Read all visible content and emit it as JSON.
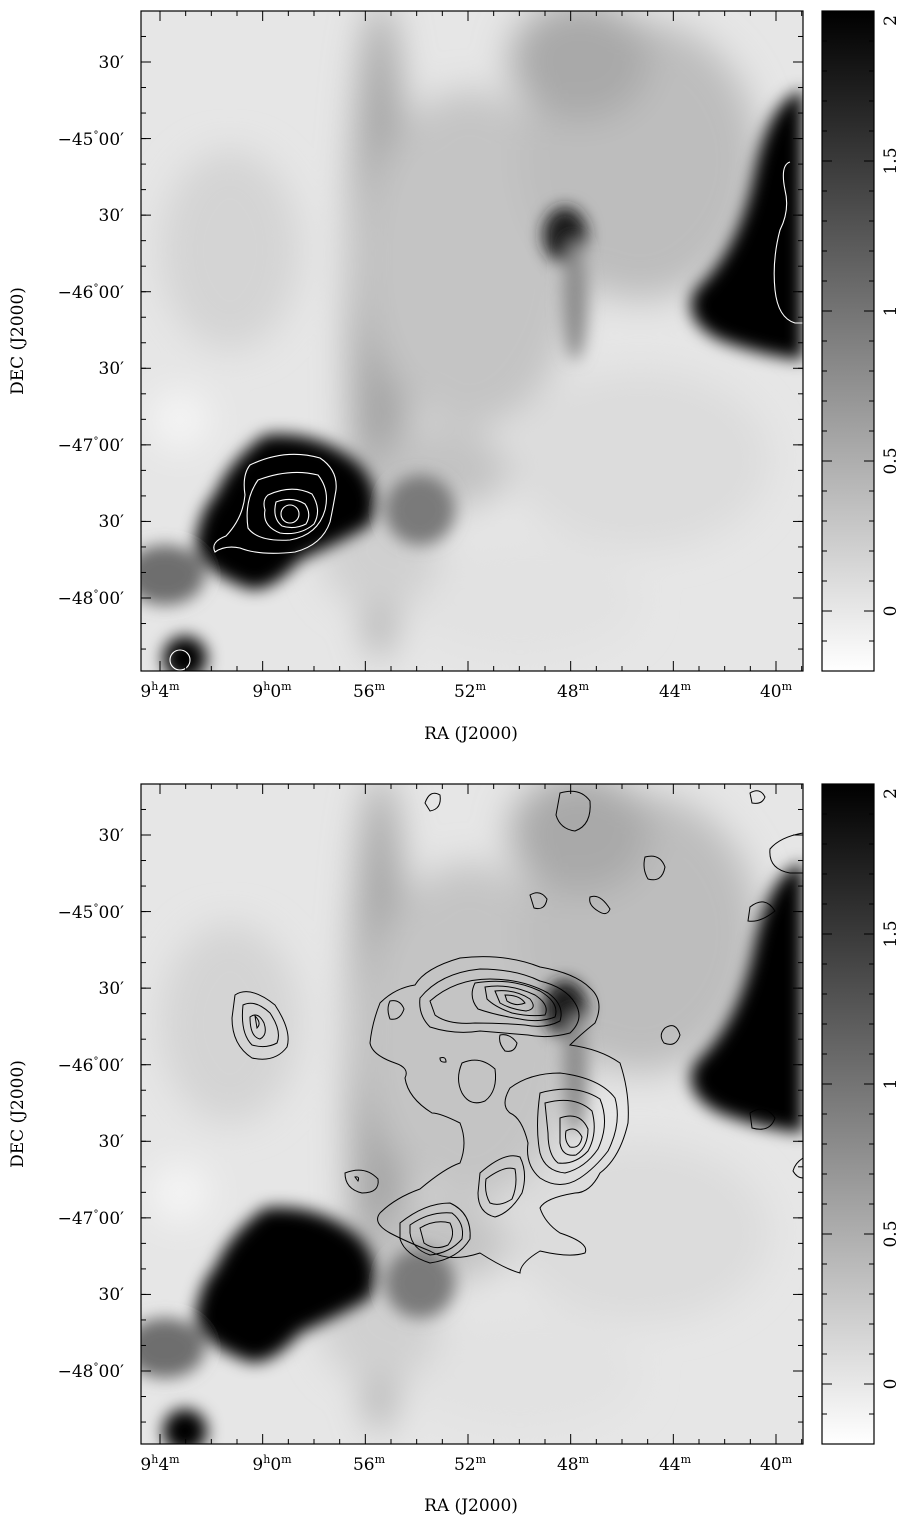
{
  "chart_data": [
    {
      "type": "heatmap",
      "xlabel": "RA (J2000)",
      "ylabel": "DEC (J2000)",
      "x_ticks": [
        {
          "value_min": 544,
          "h": "9",
          "m": "4"
        },
        {
          "value_min": 540,
          "h": "9",
          "m": "0"
        },
        {
          "value_min": 536,
          "m": "56"
        },
        {
          "value_min": 532,
          "m": "52"
        },
        {
          "value_min": 528,
          "m": "48"
        },
        {
          "value_min": 524,
          "m": "44"
        },
        {
          "value_min": 520,
          "m": "40"
        }
      ],
      "y_ticks": [
        {
          "value_deg": -44.5,
          "text": "30′"
        },
        {
          "value_deg": -45.0,
          "deg": "−45",
          "min": "00′"
        },
        {
          "value_deg": -45.5,
          "text": "30′"
        },
        {
          "value_deg": -46.0,
          "deg": "−46",
          "min": "00′"
        },
        {
          "value_deg": -46.5,
          "text": "30′"
        },
        {
          "value_deg": -47.0,
          "deg": "−47",
          "min": "00′"
        },
        {
          "value_deg": -47.5,
          "text": "30′"
        },
        {
          "value_deg": -48.0,
          "deg": "−48",
          "min": "00′"
        }
      ],
      "colorbar": {
        "range": [
          -0.2,
          2.0
        ],
        "ticks": [
          "0",
          "0.5",
          "1",
          "1.5",
          "2"
        ],
        "tick_values": [
          0,
          0.5,
          1,
          1.5,
          2
        ],
        "colormap": "gray (white low, black high)"
      },
      "contour_color": "#ffffff",
      "grid": false
    },
    {
      "type": "heatmap",
      "xlabel": "RA (J2000)",
      "ylabel": "DEC (J2000)",
      "x_ticks": [
        {
          "value_min": 544,
          "h": "9",
          "m": "4"
        },
        {
          "value_min": 540,
          "h": "9",
          "m": "0"
        },
        {
          "value_min": 536,
          "m": "56"
        },
        {
          "value_min": 532,
          "m": "52"
        },
        {
          "value_min": 528,
          "m": "48"
        },
        {
          "value_min": 524,
          "m": "44"
        },
        {
          "value_min": 520,
          "m": "40"
        }
      ],
      "y_ticks": [
        {
          "value_deg": -44.5,
          "text": "30′"
        },
        {
          "value_deg": -45.0,
          "deg": "−45",
          "min": "00′"
        },
        {
          "value_deg": -45.5,
          "text": "30′"
        },
        {
          "value_deg": -46.0,
          "deg": "−46",
          "min": "00′"
        },
        {
          "value_deg": -46.5,
          "text": "30′"
        },
        {
          "value_deg": -47.0,
          "deg": "−47",
          "min": "00′"
        },
        {
          "value_deg": -47.5,
          "text": "30′"
        },
        {
          "value_deg": -48.0,
          "deg": "−48",
          "min": "00′"
        }
      ],
      "colorbar": {
        "range": [
          -0.2,
          2.0
        ],
        "ticks": [
          "0",
          "0.5",
          "1",
          "1.5",
          "2"
        ],
        "tick_values": [
          0,
          0.5,
          1,
          1.5,
          2
        ],
        "colormap": "gray (white low, black high)"
      },
      "contour_color": "#000000",
      "grid": false
    }
  ]
}
